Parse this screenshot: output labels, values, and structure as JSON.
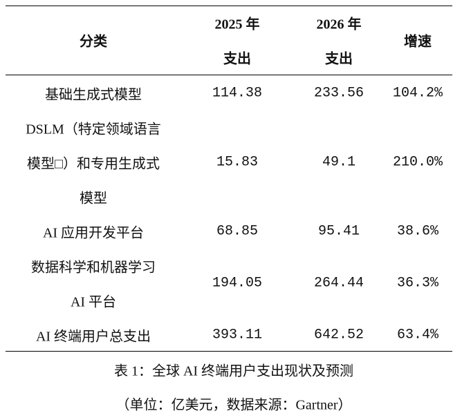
{
  "table": {
    "header": [
      [
        "分类"
      ],
      [
        "2025 年",
        "支出"
      ],
      [
        "2026 年",
        "支出"
      ],
      [
        "增速"
      ]
    ],
    "rows": [
      {
        "category": [
          "基础生成式模型"
        ],
        "cells": [
          "114.38",
          "233.56",
          "104.2%"
        ]
      },
      {
        "category": [
          "DSLM（特定领域语言",
          "模型□）和专用生成式",
          "模型"
        ],
        "cells": [
          "15.83",
          "49.1",
          "210.0%"
        ]
      },
      {
        "category": [
          "AI 应用开发平台"
        ],
        "cells": [
          "68.85",
          "95.41",
          "38.6%"
        ]
      },
      {
        "category": [
          "数据科学和机器学习",
          "AI 平台"
        ],
        "cells": [
          "194.05",
          "264.44",
          "36.3%"
        ]
      },
      {
        "category": [
          "AI 终端用户总支出"
        ],
        "cells": [
          "393.11",
          "642.52",
          "63.4%"
        ]
      }
    ]
  },
  "caption": [
    "表 1：全球 AI 终端用户支出现状及预测",
    "（单位：亿美元，数据来源：Gartner）"
  ]
}
